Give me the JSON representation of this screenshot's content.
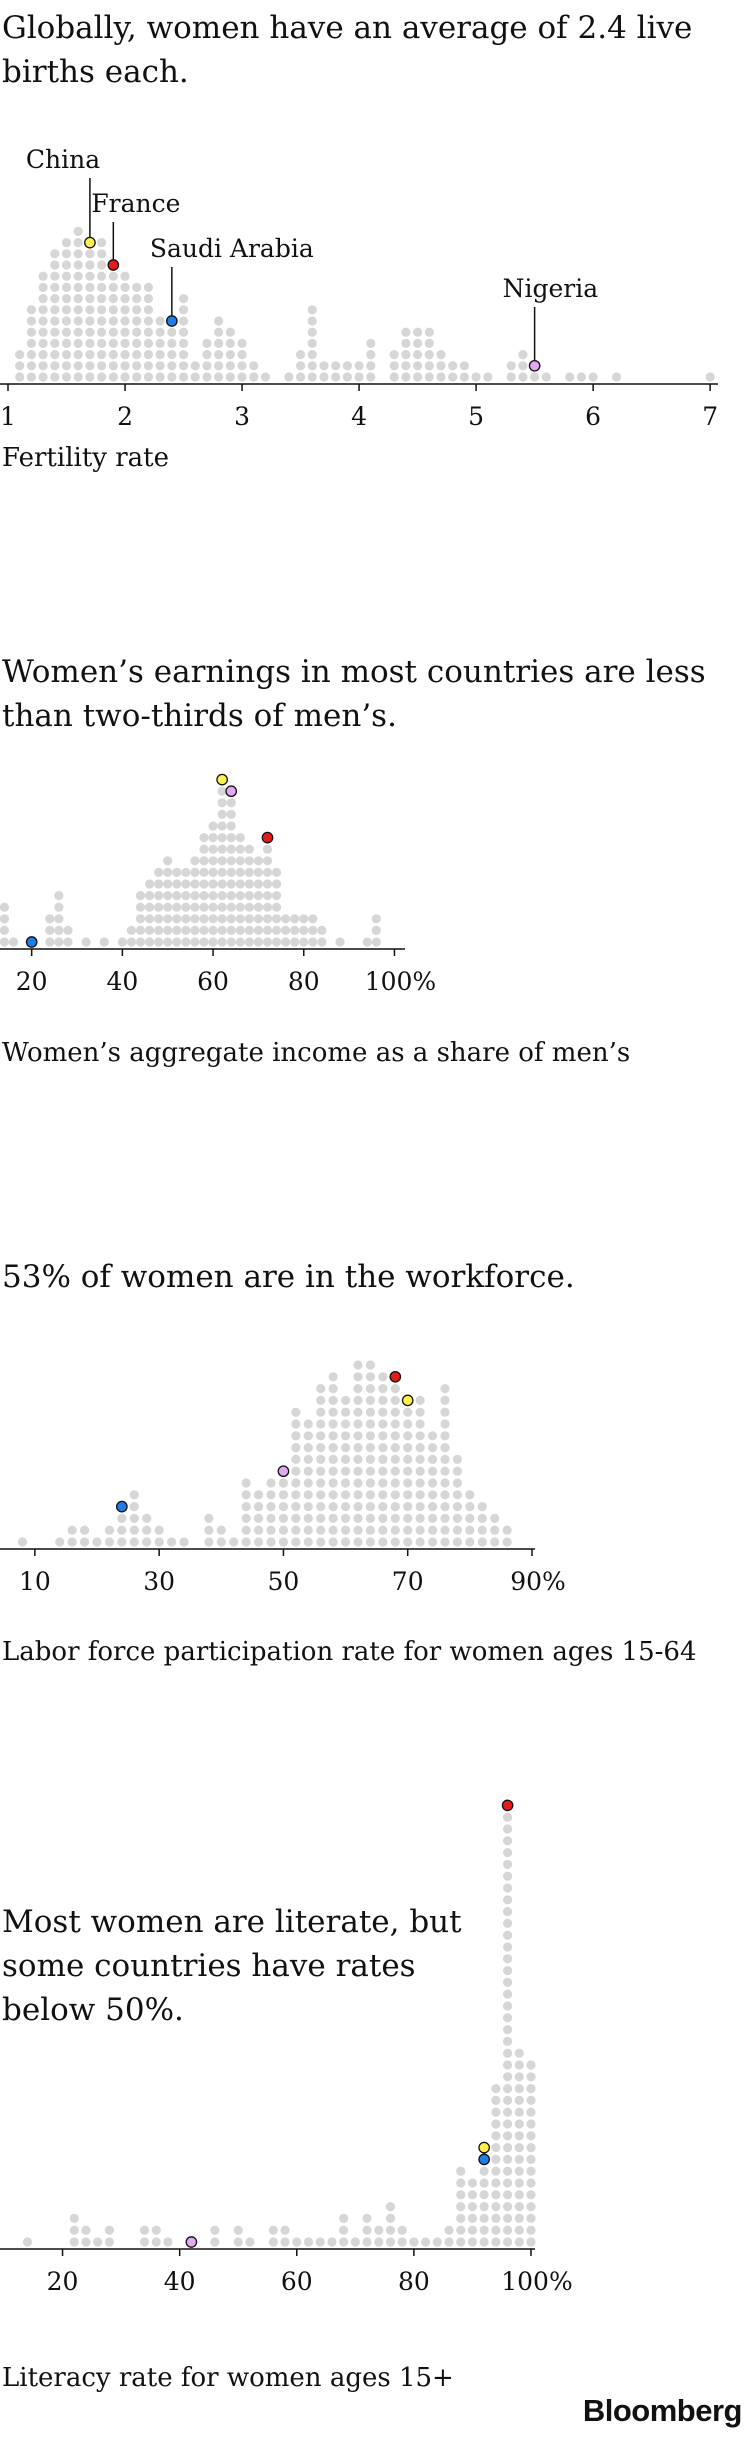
{
  "brand": "Bloomberg",
  "colors": {
    "dot": "#d6d6d6",
    "china": "#ffef4d",
    "france": "#e31b1b",
    "saudi_arabia": "#1f7de8",
    "nigeria": "#e3a6f2",
    "outline": "#111111"
  },
  "chart_data": [
    {
      "type": "dot-histogram",
      "title": "Globally, women have an average of 2.4 live births each.",
      "xlabel": "Fertility rate",
      "ticks": [
        "1",
        "2",
        "3",
        "4",
        "5",
        "6",
        "7"
      ],
      "xlim": [
        1,
        7.05
      ],
      "bin": 0.1,
      "bins_x": [
        1.1,
        1.2,
        1.3,
        1.4,
        1.5,
        1.6,
        1.7,
        1.8,
        1.9,
        2.0,
        2.1,
        2.2,
        2.3,
        2.4,
        2.5,
        2.6,
        2.7,
        2.8,
        2.9,
        3.0,
        3.1,
        3.2,
        3.4,
        3.5,
        3.6,
        3.7,
        3.8,
        3.9,
        4.0,
        4.1,
        4.3,
        4.4,
        4.5,
        4.6,
        4.7,
        4.8,
        4.9,
        5.0,
        5.1,
        5.3,
        5.4,
        5.5,
        5.6,
        5.8,
        5.9,
        6.0,
        6.2,
        7.0
      ],
      "counts": [
        3,
        7,
        10,
        12,
        13,
        14,
        13,
        13,
        11,
        10,
        9,
        9,
        6,
        6,
        8,
        2,
        4,
        6,
        5,
        4,
        2,
        1,
        1,
        3,
        7,
        2,
        2,
        2,
        2,
        4,
        3,
        5,
        5,
        5,
        3,
        2,
        2,
        1,
        1,
        2,
        3,
        2,
        1,
        1,
        1,
        1,
        1,
        1
      ],
      "highlights": [
        {
          "name": "China",
          "x": 1.7,
          "color": "china"
        },
        {
          "name": "France",
          "x": 1.9,
          "color": "france"
        },
        {
          "name": "Saudi Arabia",
          "x": 2.4,
          "color": "saudi_arabia"
        },
        {
          "name": "Nigeria",
          "x": 5.5,
          "color": "nigeria"
        }
      ]
    },
    {
      "type": "dot-histogram",
      "title": "Women’s earnings in most countries are less than two-thirds of men’s.",
      "xlabel": "Women’s aggregate income as a share of men’s",
      "ticks": [
        "20",
        "40",
        "60",
        "80",
        "100%"
      ],
      "xlim": [
        15,
        101
      ],
      "bin": 2,
      "bins_x": [
        14,
        16,
        20,
        24,
        26,
        28,
        32,
        36,
        40,
        42,
        44,
        46,
        48,
        50,
        52,
        54,
        56,
        58,
        60,
        62,
        64,
        66,
        68,
        70,
        72,
        74,
        76,
        78,
        80,
        82,
        84,
        88,
        94,
        96
      ],
      "counts": [
        4,
        1,
        1,
        3,
        5,
        2,
        1,
        1,
        1,
        2,
        5,
        6,
        7,
        8,
        7,
        7,
        8,
        10,
        11,
        15,
        14,
        10,
        9,
        8,
        10,
        7,
        3,
        3,
        3,
        3,
        2,
        1,
        1,
        3
      ],
      "highlights": [
        {
          "name": "",
          "x": 20,
          "color": "saudi_arabia"
        },
        {
          "name": "",
          "x": 62,
          "color": "china"
        },
        {
          "name": "",
          "x": 64,
          "color": "nigeria"
        },
        {
          "name": "",
          "x": 72,
          "color": "france"
        }
      ]
    },
    {
      "type": "dot-histogram",
      "title": "53% of women are in the workforce.",
      "xlabel": "Labor force participation rate for women ages 15-64",
      "ticks": [
        "10",
        "30",
        "50",
        "70",
        "90%"
      ],
      "xlim": [
        6,
        90
      ],
      "bin": 2,
      "bins_x": [
        8,
        14,
        16,
        18,
        20,
        22,
        24,
        26,
        28,
        30,
        32,
        34,
        38,
        40,
        42,
        44,
        46,
        48,
        50,
        52,
        54,
        56,
        58,
        60,
        62,
        64,
        66,
        68,
        70,
        72,
        74,
        76,
        78,
        80,
        82,
        84,
        86
      ],
      "counts": [
        1,
        1,
        2,
        2,
        1,
        2,
        4,
        5,
        3,
        2,
        1,
        1,
        3,
        2,
        1,
        6,
        5,
        6,
        7,
        12,
        11,
        14,
        15,
        13,
        16,
        16,
        15,
        15,
        13,
        13,
        10,
        14,
        8,
        5,
        4,
        3,
        2
      ],
      "highlights": [
        {
          "name": "",
          "x": 24,
          "color": "saudi_arabia"
        },
        {
          "name": "",
          "x": 50,
          "color": "nigeria"
        },
        {
          "name": "",
          "x": 68,
          "color": "france"
        },
        {
          "name": "",
          "x": 70,
          "color": "china"
        }
      ]
    },
    {
      "type": "dot-histogram",
      "title": "Most women are literate, but some countries have rates below 50%.",
      "xlabel": "Literacy rate for women ages 15+",
      "ticks": [
        "20",
        "40",
        "60",
        "80",
        "100%"
      ],
      "xlim": [
        10,
        100
      ],
      "bin": 2,
      "bins_x": [
        14,
        22,
        24,
        26,
        28,
        34,
        36,
        38,
        42,
        46,
        50,
        52,
        56,
        58,
        60,
        62,
        64,
        66,
        68,
        70,
        72,
        74,
        76,
        78,
        80,
        82,
        84,
        86,
        88,
        90,
        92,
        94,
        96,
        98,
        100
      ],
      "counts": [
        1,
        3,
        2,
        1,
        2,
        2,
        2,
        1,
        1,
        2,
        2,
        1,
        2,
        2,
        1,
        1,
        1,
        1,
        3,
        1,
        3,
        2,
        4,
        2,
        1,
        1,
        1,
        2,
        7,
        6,
        9,
        14,
        38,
        17,
        16
      ],
      "highlights": [
        {
          "name": "",
          "x": 42,
          "color": "nigeria"
        },
        {
          "name": "",
          "x": 92,
          "color": "china"
        },
        {
          "name": "",
          "x": 92,
          "color": "saudi_arabia"
        },
        {
          "name": "",
          "x": 96,
          "color": "france"
        }
      ]
    }
  ]
}
